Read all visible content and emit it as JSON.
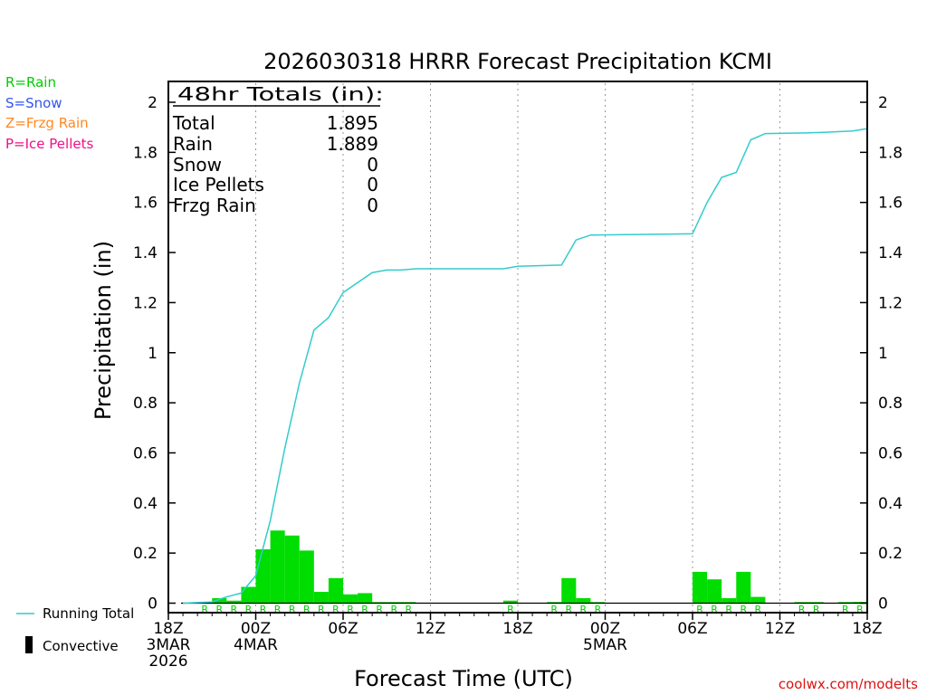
{
  "chart_data": {
    "type": "bar",
    "title": "2026030318 HRRR Forecast Precipitation KCMI",
    "ylabel": "Precipitation (in)",
    "xlabel": "Forecast Time (UTC)",
    "ylim": [
      0,
      2.1
    ],
    "yticks": [
      "0",
      "0.2",
      "0.4",
      "0.6",
      "0.8",
      "1",
      "1.2",
      "1.4",
      "1.6",
      "1.8",
      "2"
    ],
    "xticks": [
      {
        "h": 0,
        "l1": "18Z",
        "l2": "3MAR",
        "l3": "2026"
      },
      {
        "h": 6,
        "l1": "00Z",
        "l2": "4MAR",
        "l3": ""
      },
      {
        "h": 12,
        "l1": "06Z",
        "l2": "",
        "l3": ""
      },
      {
        "h": 18,
        "l1": "12Z",
        "l2": "",
        "l3": ""
      },
      {
        "h": 24,
        "l1": "18Z",
        "l2": "",
        "l3": ""
      },
      {
        "h": 30,
        "l1": "00Z",
        "l2": "5MAR",
        "l3": ""
      },
      {
        "h": 36,
        "l1": "06Z",
        "l2": "",
        "l3": ""
      },
      {
        "h": 42,
        "l1": "12Z",
        "l2": "",
        "l3": ""
      },
      {
        "h": 48,
        "l1": "18Z",
        "l2": "",
        "l3": ""
      }
    ],
    "hourly": [
      {
        "h": 3,
        "v": 0.005,
        "p": "R"
      },
      {
        "h": 4,
        "v": 0.02,
        "p": "R"
      },
      {
        "h": 5,
        "v": 0.01,
        "p": "R"
      },
      {
        "h": 6,
        "v": 0.065,
        "p": "R"
      },
      {
        "h": 7,
        "v": 0.215,
        "p": "R"
      },
      {
        "h": 8,
        "v": 0.29,
        "p": "R"
      },
      {
        "h": 9,
        "v": 0.27,
        "p": "R"
      },
      {
        "h": 10,
        "v": 0.21,
        "p": "R"
      },
      {
        "h": 11,
        "v": 0.045,
        "p": "R"
      },
      {
        "h": 12,
        "v": 0.1,
        "p": "R"
      },
      {
        "h": 13,
        "v": 0.035,
        "p": "R"
      },
      {
        "h": 14,
        "v": 0.04,
        "p": "R"
      },
      {
        "h": 15,
        "v": 0.003,
        "p": "R"
      },
      {
        "h": 16,
        "v": 0.002,
        "p": "R"
      },
      {
        "h": 17,
        "v": 0.002,
        "p": "R"
      },
      {
        "h": 24,
        "v": 0.01,
        "p": "R"
      },
      {
        "h": 27,
        "v": 0.003,
        "p": "R"
      },
      {
        "h": 28,
        "v": 0.1,
        "p": "R"
      },
      {
        "h": 29,
        "v": 0.02,
        "p": "R"
      },
      {
        "h": 30,
        "v": 0.003,
        "p": "R"
      },
      {
        "h": 37,
        "v": 0.125,
        "p": "R"
      },
      {
        "h": 38,
        "v": 0.095,
        "p": "R"
      },
      {
        "h": 39,
        "v": 0.02,
        "p": "R"
      },
      {
        "h": 40,
        "v": 0.125,
        "p": "R"
      },
      {
        "h": 41,
        "v": 0.025,
        "p": "R"
      },
      {
        "h": 44,
        "v": 0.002,
        "p": "R"
      },
      {
        "h": 45,
        "v": 0.002,
        "p": "R"
      },
      {
        "h": 47,
        "v": 0.004,
        "p": "R"
      },
      {
        "h": 48,
        "v": 0.005,
        "p": "R"
      }
    ],
    "running_total": {
      "name": "Running Total",
      "points": [
        [
          1,
          0.0
        ],
        [
          3,
          0.005
        ],
        [
          4,
          0.025
        ],
        [
          5,
          0.04
        ],
        [
          6,
          0.11
        ],
        [
          7,
          0.33
        ],
        [
          8,
          0.62
        ],
        [
          9,
          0.88
        ],
        [
          10,
          1.09
        ],
        [
          11,
          1.14
        ],
        [
          12,
          1.24
        ],
        [
          13,
          1.28
        ],
        [
          14,
          1.32
        ],
        [
          15,
          1.33
        ],
        [
          16,
          1.33
        ],
        [
          17,
          1.335
        ],
        [
          23,
          1.335
        ],
        [
          24,
          1.345
        ],
        [
          27,
          1.35
        ],
        [
          28,
          1.45
        ],
        [
          29,
          1.47
        ],
        [
          36,
          1.475
        ],
        [
          37,
          1.6
        ],
        [
          38,
          1.7
        ],
        [
          39,
          1.72
        ],
        [
          40,
          1.85
        ],
        [
          41,
          1.875
        ],
        [
          44,
          1.878
        ],
        [
          45,
          1.88
        ],
        [
          47,
          1.885
        ],
        [
          48,
          1.895
        ]
      ]
    },
    "colors": {
      "bar": "#00dd00",
      "line": "#33cccc",
      "rain": "#00cc00",
      "snow": "#3355ee",
      "frzg": "#ff8822",
      "ice": "#ee1188",
      "convective": "#000000",
      "credit": "#dd1111"
    }
  },
  "totals_box": {
    "heading": "48hr Totals (in):",
    "rows": [
      {
        "label": "Total",
        "value": "1.895"
      },
      {
        "label": "Rain",
        "value": "1.889"
      },
      {
        "label": "Snow",
        "value": "0"
      },
      {
        "label": "Ice Pellets",
        "value": "0"
      },
      {
        "label": "Frzg Rain",
        "value": "0"
      }
    ]
  },
  "ptype_legend": {
    "rain": "R=Rain",
    "snow": "S=Snow",
    "frzg": "Z=Frzg Rain",
    "ice": "P=Ice Pellets"
  },
  "bottom_legend": {
    "running_total": "Running Total",
    "convective": "Convective"
  },
  "credit": "coolwx.com/modelts"
}
